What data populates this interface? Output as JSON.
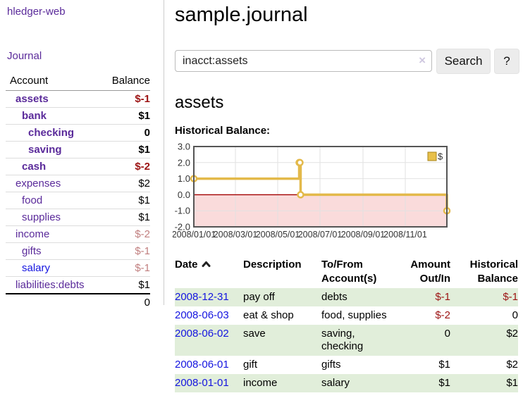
{
  "sidebar": {
    "brand": "hledger-web",
    "nav": {
      "journal": "Journal"
    },
    "accounts_table": {
      "headers": {
        "account": "Account",
        "balance": "Balance"
      },
      "rows": [
        {
          "name": "assets",
          "balance": "$-1"
        },
        {
          "name": "bank",
          "balance": "$1"
        },
        {
          "name": "checking",
          "balance": "0"
        },
        {
          "name": "saving",
          "balance": "$1"
        },
        {
          "name": "cash",
          "balance": "$-2"
        },
        {
          "name": "expenses",
          "balance": "$2"
        },
        {
          "name": "food",
          "balance": "$1"
        },
        {
          "name": "supplies",
          "balance": "$1"
        },
        {
          "name": "income",
          "balance": "$-2"
        },
        {
          "name": "gifts",
          "balance": "$-1"
        },
        {
          "name": "salary",
          "balance": "$-1"
        },
        {
          "name": "liabilities:debts",
          "balance": "$1"
        }
      ],
      "total": "0"
    }
  },
  "header": {
    "title": "sample.journal"
  },
  "search": {
    "value": "inacct:assets",
    "clear_icon": "×",
    "button": "Search",
    "help_button": "?"
  },
  "content": {
    "heading": "assets",
    "chart_label": "Historical Balance:"
  },
  "chart_data": {
    "type": "line",
    "step": true,
    "title": "Historical Balance:",
    "series": [
      {
        "name": "$",
        "color": "#e3b94a",
        "points": [
          [
            "2008-01-01",
            1
          ],
          [
            "2008-06-01",
            2
          ],
          [
            "2008-06-02",
            2
          ],
          [
            "2008-06-03",
            0
          ],
          [
            "2008-12-31",
            -1
          ]
        ]
      }
    ],
    "x_range": [
      "2008-01-01",
      "2008-12-31"
    ],
    "y_range": [
      -2,
      3
    ],
    "x_ticks": [
      {
        "date": "2008-01-01",
        "label": "2008/01/01"
      },
      {
        "date": "2008-03-01",
        "label": "2008/03/01"
      },
      {
        "date": "2008-05-01",
        "label": "2008/05/01"
      },
      {
        "date": "2008-07-01",
        "label": "2008/07/01"
      },
      {
        "date": "2008-09-01",
        "label": "2008/09/01"
      },
      {
        "date": "2008-11-01",
        "label": "2008/11/01"
      }
    ],
    "y_ticks": [
      {
        "value": 3,
        "label": "3.0"
      },
      {
        "value": 2,
        "label": "2.0"
      },
      {
        "value": 1,
        "label": "1.0"
      },
      {
        "value": 0,
        "label": "0.0"
      },
      {
        "value": -1,
        "label": "-1.0"
      },
      {
        "value": -2,
        "label": "-2.0"
      }
    ],
    "legend": "$",
    "legend_position": "top-right",
    "grid": true,
    "colors": {
      "line": "#e3b94a",
      "marker_fill": "#ffffff",
      "negative_region": "#fadbdb",
      "zero_line": "#a30000",
      "grid": "#e2e2e2",
      "border": "#555555",
      "legend_fill": "#e8c04a",
      "legend_border": "#a8861c"
    }
  },
  "register_table": {
    "headers": {
      "date": "Date",
      "description": "Description",
      "account": "To/From Account(s)",
      "amount": "Amount Out/In",
      "balance": "Historical Balance"
    },
    "rows": [
      {
        "date": "2008-12-31",
        "description": "pay off",
        "accounts_lines": [
          "debts"
        ],
        "amount": "$-1",
        "balance": "$-1"
      },
      {
        "date": "2008-06-03",
        "description": "eat & shop",
        "accounts_lines": [
          "food, supplies"
        ],
        "amount": "$-2",
        "balance": "0"
      },
      {
        "date": "2008-06-02",
        "description": "save",
        "accounts_lines": [
          "saving,",
          "checking"
        ],
        "amount": "0",
        "balance": "$2"
      },
      {
        "date": "2008-06-01",
        "description": "gift",
        "accounts_lines": [
          "gifts"
        ],
        "amount": "$1",
        "balance": "$2"
      },
      {
        "date": "2008-01-01",
        "description": "income",
        "accounts_lines": [
          "salary"
        ],
        "amount": "$1",
        "balance": "$1"
      }
    ]
  }
}
